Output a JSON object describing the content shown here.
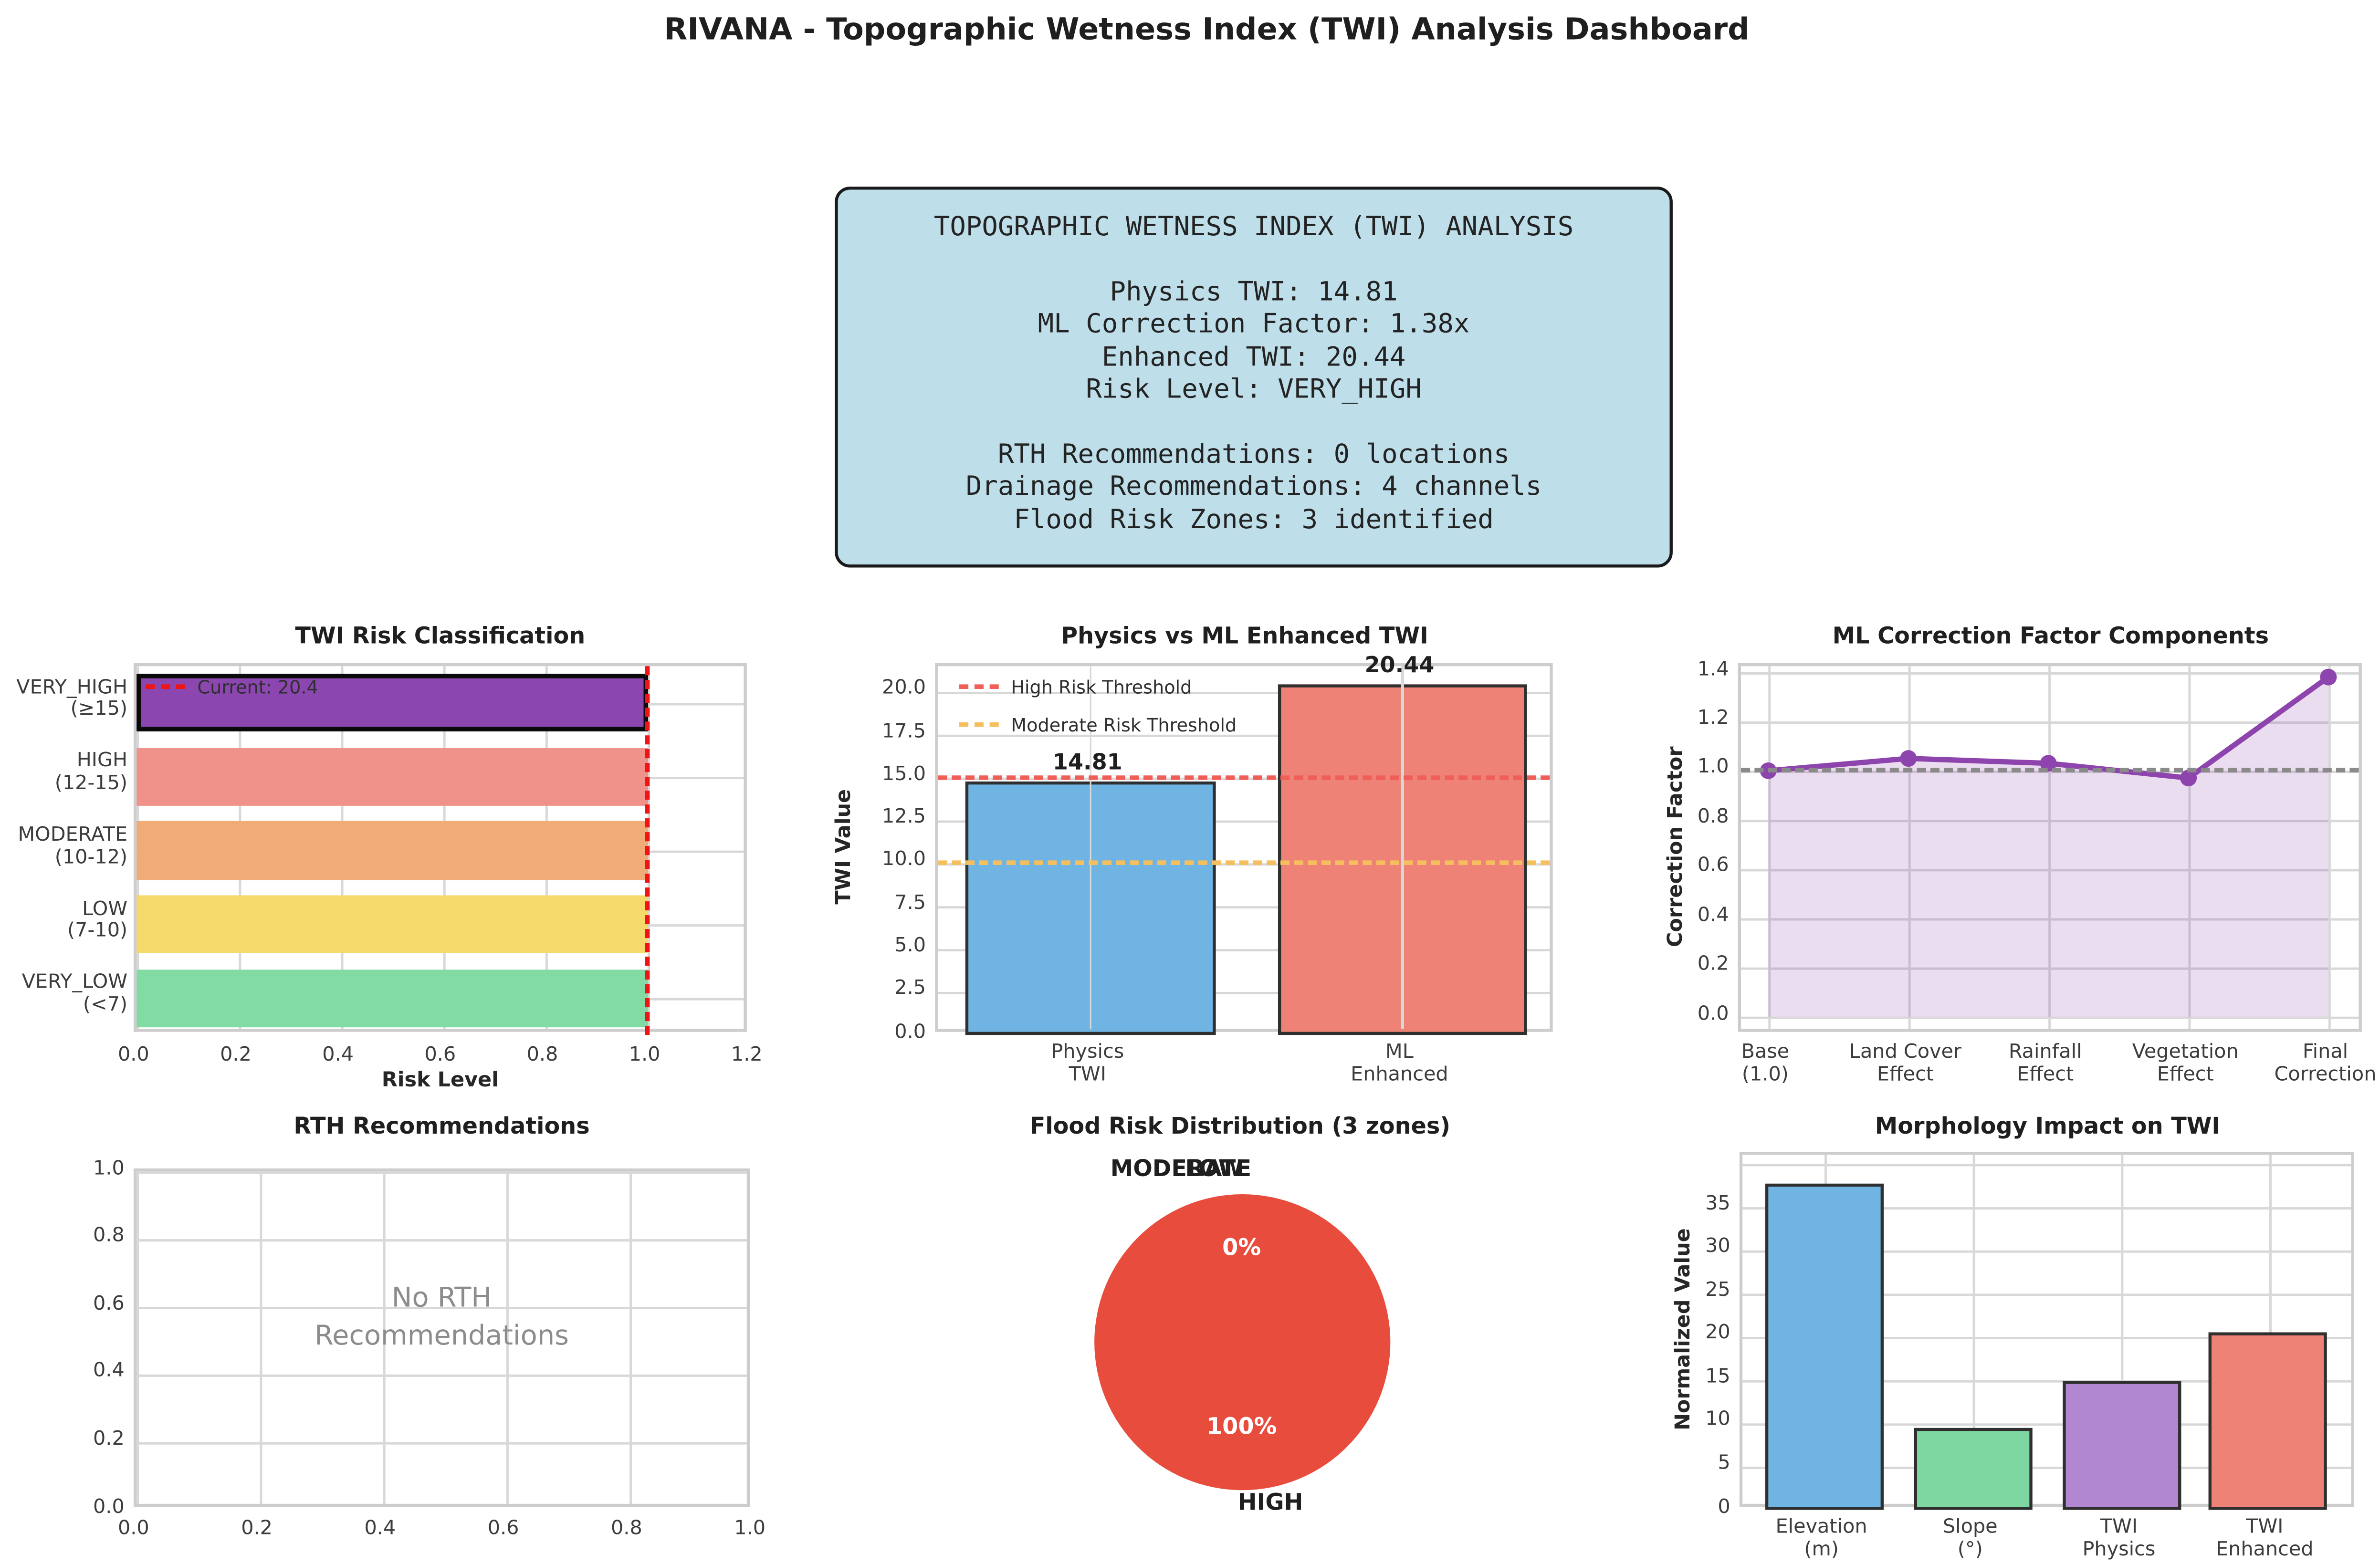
{
  "title": "RIVANA - Topographic Wetness Index (TWI) Analysis Dashboard",
  "infobox": {
    "lines": [
      "TOPOGRAPHIC WETNESS INDEX (TWI) ANALYSIS",
      "",
      "Physics TWI: 14.81",
      "ML Correction Factor: 1.38x",
      "Enhanced TWI: 20.44",
      "Risk Level: VERY_HIGH",
      "",
      "RTH Recommendations: 0 locations",
      "Drainage Recommendations: 4 channels",
      "Flood Risk Zones: 3 identified"
    ]
  },
  "chart_data": [
    {
      "key": "risk",
      "type": "bar",
      "orientation": "horizontal",
      "title": "TWI Risk Classification",
      "xlabel": "Risk Level",
      "categories": [
        [
          "VERY_HIGH",
          "(≥15)"
        ],
        [
          "HIGH",
          "(12-15)"
        ],
        [
          "MODERATE",
          "(10-12)"
        ],
        [
          "LOW",
          "(7-10)"
        ],
        [
          "VERY_LOW",
          "(<7)"
        ]
      ],
      "values": [
        1.0,
        1.0,
        1.0,
        1.0,
        1.0
      ],
      "bar_colors": [
        "#8b46af",
        "#f0928a",
        "#f0ab76",
        "#f5d96a",
        "#82dba3"
      ],
      "highlight_index": 0,
      "current_line_x": 1.0,
      "legend": "Current: 20.4",
      "xlim": [
        0,
        1.2
      ],
      "xticks": [
        "0.0",
        "0.2",
        "0.4",
        "0.6",
        "0.8",
        "1.0",
        "1.2"
      ],
      "grid": true
    },
    {
      "key": "physics",
      "type": "bar",
      "title": "Physics vs ML Enhanced TWI",
      "ylabel": "TWI Value",
      "categories": [
        [
          "Physics",
          "TWI"
        ],
        [
          "ML",
          "Enhanced"
        ]
      ],
      "values": [
        14.81,
        20.44
      ],
      "value_labels": [
        "14.81",
        "20.44"
      ],
      "bar_colors": [
        "#70b4e3",
        "#ee8276"
      ],
      "yticks": [
        "0.0",
        "2.5",
        "5.0",
        "7.5",
        "10.0",
        "12.5",
        "15.0",
        "17.5",
        "20.0"
      ],
      "ylim": [
        0,
        21.5
      ],
      "thresholds": [
        {
          "label": "High Risk Threshold",
          "value": 15,
          "color": "#ef5f58"
        },
        {
          "label": "Moderate Risk Threshold",
          "value": 10,
          "color": "#f6bf5e"
        }
      ],
      "grid": true
    },
    {
      "key": "mlcomp",
      "type": "line",
      "title": "ML Correction Factor Components",
      "ylabel": "Correction Factor",
      "categories": [
        [
          "Base",
          "(1.0)"
        ],
        [
          "Land Cover",
          "Effect"
        ],
        [
          "Rainfall",
          "Effect"
        ],
        [
          "Vegetation",
          "Effect"
        ],
        [
          "Final",
          "Correction"
        ]
      ],
      "values": [
        1.0,
        1.05,
        1.03,
        0.97,
        1.38
      ],
      "baseline": 1.0,
      "yticks": [
        "0.0",
        "0.2",
        "0.4",
        "0.6",
        "0.8",
        "1.0",
        "1.2",
        "1.4"
      ],
      "ylim": [
        0,
        1.45
      ],
      "line_color": "#8e44ad",
      "fill": true,
      "grid": true
    },
    {
      "key": "rth",
      "type": "scatter",
      "title": "RTH Recommendations",
      "points": [],
      "annotation": [
        "No RTH",
        "Recommendations"
      ],
      "xticks": [
        "0.0",
        "0.2",
        "0.4",
        "0.6",
        "0.8",
        "1.0"
      ],
      "yticks": [
        "0.0",
        "0.2",
        "0.4",
        "0.6",
        "0.8",
        "1.0"
      ],
      "xlim": [
        0,
        1
      ],
      "ylim": [
        0,
        1
      ],
      "grid": true
    },
    {
      "key": "flood",
      "type": "pie",
      "title": "Flood Risk Distribution (3 zones)",
      "slices": [
        {
          "label": "MODERATE",
          "pct": 0,
          "pct_label": "0%"
        },
        {
          "label": "LOW",
          "pct": 0,
          "pct_label": "0%"
        },
        {
          "label": "HIGH",
          "pct": 100,
          "pct_label": "100%"
        }
      ],
      "color": "#e84c3d"
    },
    {
      "key": "morph",
      "type": "bar",
      "title": "Morphology Impact on TWI",
      "ylabel": "Normalized Value",
      "categories": [
        [
          "Elevation",
          "(m)"
        ],
        [
          "Slope",
          "(°)"
        ],
        [
          "TWI",
          "Physics"
        ],
        [
          "TWI",
          "Enhanced"
        ]
      ],
      "values": [
        37.7,
        9.4,
        14.81,
        20.44
      ],
      "bar_colors": [
        "#70b4e3",
        "#7ed6a0",
        "#b087d0",
        "#ee8276"
      ],
      "yticks": [
        "0",
        "5",
        "10",
        "15",
        "20",
        "25",
        "30",
        "35"
      ],
      "ylim": [
        0,
        41
      ],
      "grid": true
    }
  ],
  "colors": {
    "background": "#ffffff",
    "infobox_bg": "#bedeea",
    "accent_red": "#f01515",
    "grid": "#d8d8d8",
    "text_dark": "#262626",
    "muted_text": "#8c8c8c",
    "pie_red": "#e84c3d"
  }
}
